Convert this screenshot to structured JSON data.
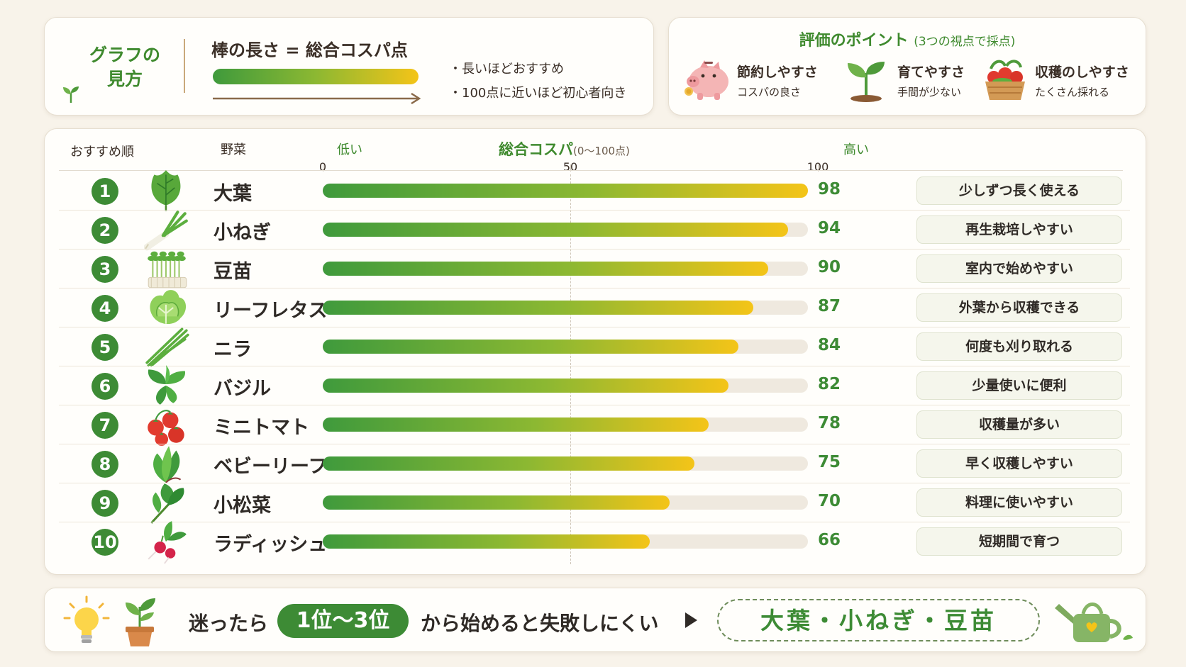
{
  "legend": {
    "title_line1": "グラフの",
    "title_line2": "見方",
    "bar_title": "棒の長さ = 総合コスパ点",
    "notes": [
      "・長いほどおすすめ",
      "・100点に近いほど初心者向き"
    ]
  },
  "points": {
    "title": "評価のポイント",
    "subtitle": "(3つの視点で採点)",
    "items": [
      {
        "title": "節約しやすさ",
        "desc": "コスパの良さ",
        "icon": "piggy-bank-icon"
      },
      {
        "title": "育てやすさ",
        "desc": "手間が少ない",
        "icon": "sprout-icon"
      },
      {
        "title": "収穫のしやすさ",
        "desc": "たくさん採れる",
        "icon": "harvest-basket-icon"
      }
    ]
  },
  "chart_data": {
    "type": "bar",
    "orientation": "horizontal",
    "headers": {
      "rank": "おすすめ順",
      "vegetable": "野菜",
      "low": "低い",
      "high": "高い",
      "axis_title": "総合コスパ",
      "axis_sub": "(0〜100点)"
    },
    "xlim": [
      0,
      100
    ],
    "ticks": [
      0,
      50,
      100
    ],
    "ranks": [
      "1",
      "2",
      "3",
      "4",
      "5",
      "6",
      "7",
      "8",
      "9",
      "10"
    ],
    "categories": [
      "大葉",
      "小ねぎ",
      "豆苗",
      "リーフレタス",
      "ニラ",
      "バジル",
      "ミニトマト",
      "ベビーリーフ",
      "小松菜",
      "ラディッシュ"
    ],
    "values": [
      98,
      94,
      90,
      87,
      84,
      82,
      78,
      75,
      70,
      66
    ],
    "notes": [
      "少しずつ長く使える",
      "再生栽培しやすい",
      "室内で始めやすい",
      "外葉から収穫できる",
      "何度も刈り取れる",
      "少量使いに便利",
      "収穫量が多い",
      "早く収穫しやすい",
      "料理に使いやすい",
      "短期間で育つ"
    ],
    "icons": [
      "shiso-leaf-icon",
      "green-onion-icon",
      "pea-sprouts-icon",
      "leaf-lettuce-icon",
      "chive-icon",
      "basil-icon",
      "cherry-tomato-icon",
      "baby-leaf-icon",
      "komatsuna-icon",
      "radish-icon"
    ],
    "colors": {
      "bar_start": "#3f9a3c",
      "bar_mid": "#8cb832",
      "bar_end": "#f4c418",
      "track": "#efe9df",
      "accent": "#3d8b35"
    }
  },
  "bottom": {
    "pre": "迷ったら",
    "pill": "1位〜3位",
    "post": "から始めると失敗しにくい",
    "box": "大葉・小ねぎ・豆苗"
  }
}
